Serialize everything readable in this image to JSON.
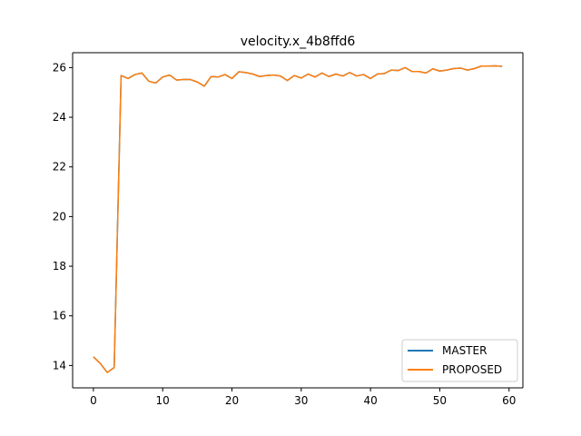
{
  "chart_data": {
    "type": "line",
    "title": "velocity.x_4b8ffd6",
    "xlabel": "",
    "ylabel": "",
    "xlim": [
      -3,
      62
    ],
    "ylim": [
      13.1,
      26.6
    ],
    "xticks": [
      0,
      10,
      20,
      30,
      40,
      50,
      60
    ],
    "yticks": [
      14,
      16,
      18,
      20,
      22,
      24,
      26
    ],
    "legend_position": "lower-right",
    "grid": false,
    "x": [
      0,
      1,
      2,
      3,
      4,
      5,
      6,
      7,
      8,
      9,
      10,
      11,
      12,
      13,
      14,
      15,
      16,
      17,
      18,
      19,
      20,
      21,
      22,
      23,
      24,
      25,
      26,
      27,
      28,
      29,
      30,
      31,
      32,
      33,
      34,
      35,
      36,
      37,
      38,
      39,
      40,
      41,
      42,
      43,
      44,
      45,
      46,
      47,
      48,
      49,
      50,
      51,
      52,
      53,
      54,
      55,
      56,
      57,
      58,
      59
    ],
    "series": [
      {
        "name": "MASTER",
        "color": "#1f77b4",
        "values": [
          14.35,
          14.08,
          13.72,
          13.92,
          25.68,
          25.56,
          25.72,
          25.78,
          25.45,
          25.38,
          25.62,
          25.7,
          25.5,
          25.52,
          25.52,
          25.42,
          25.25,
          25.64,
          25.62,
          25.72,
          25.56,
          25.83,
          25.8,
          25.74,
          25.64,
          25.68,
          25.7,
          25.66,
          25.48,
          25.68,
          25.58,
          25.74,
          25.62,
          25.78,
          25.64,
          25.74,
          25.66,
          25.8,
          25.66,
          25.72,
          25.56,
          25.74,
          25.76,
          25.9,
          25.88,
          26.0,
          25.84,
          25.84,
          25.78,
          25.95,
          25.86,
          25.9,
          25.96,
          25.98,
          25.9,
          25.96,
          26.06,
          26.06,
          26.07,
          26.05
        ]
      },
      {
        "name": "PROPOSED",
        "color": "#ff7f0e",
        "values": [
          14.35,
          14.08,
          13.72,
          13.92,
          25.68,
          25.56,
          25.72,
          25.78,
          25.45,
          25.38,
          25.62,
          25.7,
          25.5,
          25.52,
          25.52,
          25.42,
          25.25,
          25.64,
          25.62,
          25.72,
          25.56,
          25.83,
          25.8,
          25.74,
          25.64,
          25.68,
          25.7,
          25.66,
          25.48,
          25.68,
          25.58,
          25.74,
          25.62,
          25.78,
          25.64,
          25.74,
          25.66,
          25.8,
          25.66,
          25.72,
          25.56,
          25.74,
          25.76,
          25.9,
          25.88,
          26.0,
          25.84,
          25.84,
          25.78,
          25.95,
          25.86,
          25.9,
          25.96,
          25.98,
          25.9,
          25.96,
          26.06,
          26.06,
          26.07,
          26.05
        ]
      }
    ]
  }
}
